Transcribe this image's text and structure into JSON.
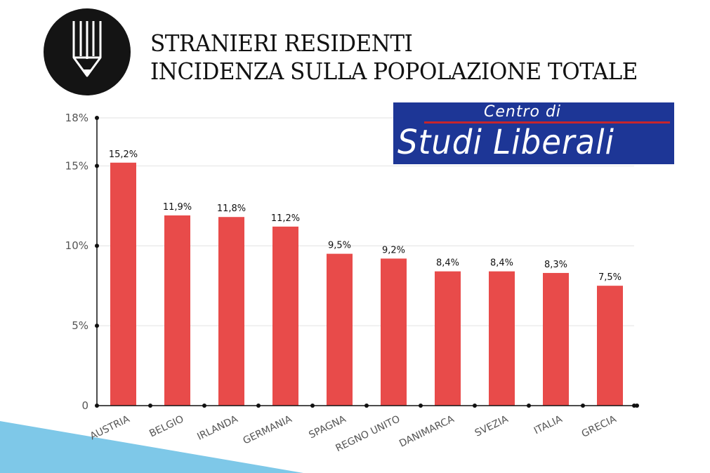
{
  "header": {
    "title_line1": "STRANIERI RESIDENTI",
    "title_line2": "INCIDENZA SULLA POPOLAZIONE TOTALE",
    "brand_small": "Centro di",
    "brand_large": "Studi Liberali",
    "logo_icon": "pencil-icon"
  },
  "colors": {
    "bar": "#e84b4a",
    "brand_bg": "#1d3696",
    "brand_line": "#c6252c",
    "accent": "#7ec8e8"
  },
  "chart_data": {
    "type": "bar",
    "title": "STRANIERI RESIDENTI INCIDENZA SULLA POPOLAZIONE TOTALE",
    "categories": [
      "AUSTRIA",
      "BELGIO",
      "IRLANDA",
      "GERMANIA",
      "SPAGNA",
      "REGNO UNITO",
      "DANIMARCA",
      "SVEZIA",
      "ITALIA",
      "GRECIA"
    ],
    "values": [
      15.2,
      11.9,
      11.8,
      11.2,
      9.5,
      9.2,
      8.4,
      8.4,
      8.3,
      7.5
    ],
    "data_labels": [
      "15,2%",
      "11,9%",
      "11,8%",
      "11,2%",
      "9,5%",
      "9,2%",
      "8,4%",
      "8,4%",
      "8,3%",
      "7,5%"
    ],
    "yticks": [
      0,
      5,
      10,
      15,
      18
    ],
    "ytick_labels": [
      "0",
      "5%",
      "10%",
      "15%",
      "18%"
    ],
    "ylim": [
      0,
      18
    ],
    "xlabel": "",
    "ylabel": "",
    "grid": true,
    "legend": "none"
  }
}
